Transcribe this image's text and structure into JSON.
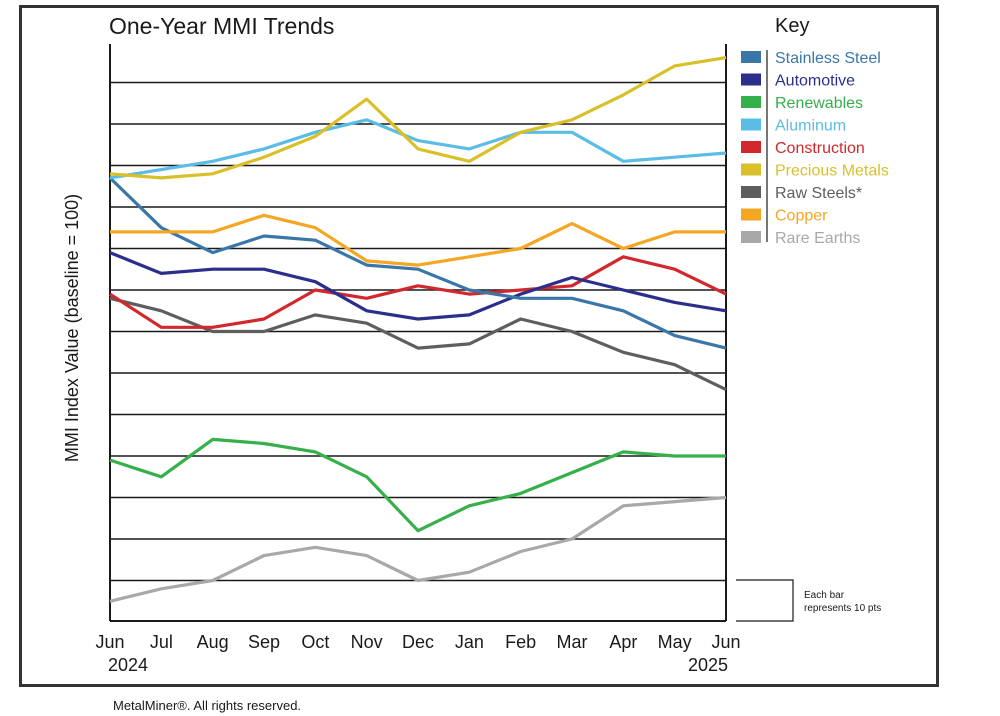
{
  "chart_data": {
    "type": "line",
    "title": "One-Year MMI Trends",
    "ylabel": "MMI Index Value (baseline = 100)",
    "xlabel": "",
    "legend_title": "Key",
    "legend_position": "right",
    "grid": true,
    "ylim": [
      0,
      140
    ],
    "grid_step": 10,
    "categories": [
      "Jun",
      "Jul",
      "Aug",
      "Sep",
      "Oct",
      "Nov",
      "Dec",
      "Jan",
      "Feb",
      "Mar",
      "Apr",
      "May",
      "Jun"
    ],
    "year_labels": [
      "2024",
      "2025"
    ],
    "scale_note": [
      "Each bar",
      "represents 10 pts"
    ],
    "series": [
      {
        "name": "Stainless Steel",
        "color": "#3a76a8",
        "values": [
          107,
          95,
          89,
          93,
          92,
          86,
          85,
          80,
          78,
          78,
          75,
          69,
          66
        ]
      },
      {
        "name": "Automotive",
        "color": "#2b2f8c",
        "values": [
          89,
          84,
          85,
          85,
          82,
          75,
          73,
          74,
          79,
          83,
          80,
          77,
          75
        ]
      },
      {
        "name": "Renewables",
        "color": "#36b04a",
        "values": [
          39,
          35,
          44,
          43,
          41,
          35,
          22,
          28,
          31,
          36,
          41,
          40,
          40
        ]
      },
      {
        "name": "Aluminum",
        "color": "#5bbde6",
        "values": [
          107,
          109,
          111,
          114,
          118,
          121,
          116,
          114,
          118,
          118,
          111,
          112,
          113
        ]
      },
      {
        "name": "Construction",
        "color": "#d2282d",
        "values": [
          79,
          71,
          71,
          73,
          80,
          78,
          81,
          79,
          80,
          81,
          88,
          85,
          79
        ]
      },
      {
        "name": "Precious Metals",
        "color": "#d9c02a",
        "values": [
          108,
          107,
          108,
          112,
          117,
          126,
          114,
          111,
          118,
          121,
          127,
          134,
          136
        ]
      },
      {
        "name": "Raw Steels*",
        "color": "#5e5e5e",
        "values": [
          78,
          75,
          70,
          70,
          74,
          72,
          66,
          67,
          73,
          70,
          65,
          62,
          56
        ]
      },
      {
        "name": "Copper",
        "color": "#f5a623",
        "values": [
          94,
          94,
          94,
          98,
          95,
          87,
          86,
          88,
          90,
          96,
          90,
          94,
          94
        ]
      },
      {
        "name": "Rare Earths",
        "color": "#a8a8a8",
        "values": [
          5,
          8,
          10,
          16,
          18,
          16,
          10,
          12,
          17,
          20,
          28,
          29,
          30
        ]
      }
    ]
  },
  "footer": "MetalMiner®. All rights reserved."
}
